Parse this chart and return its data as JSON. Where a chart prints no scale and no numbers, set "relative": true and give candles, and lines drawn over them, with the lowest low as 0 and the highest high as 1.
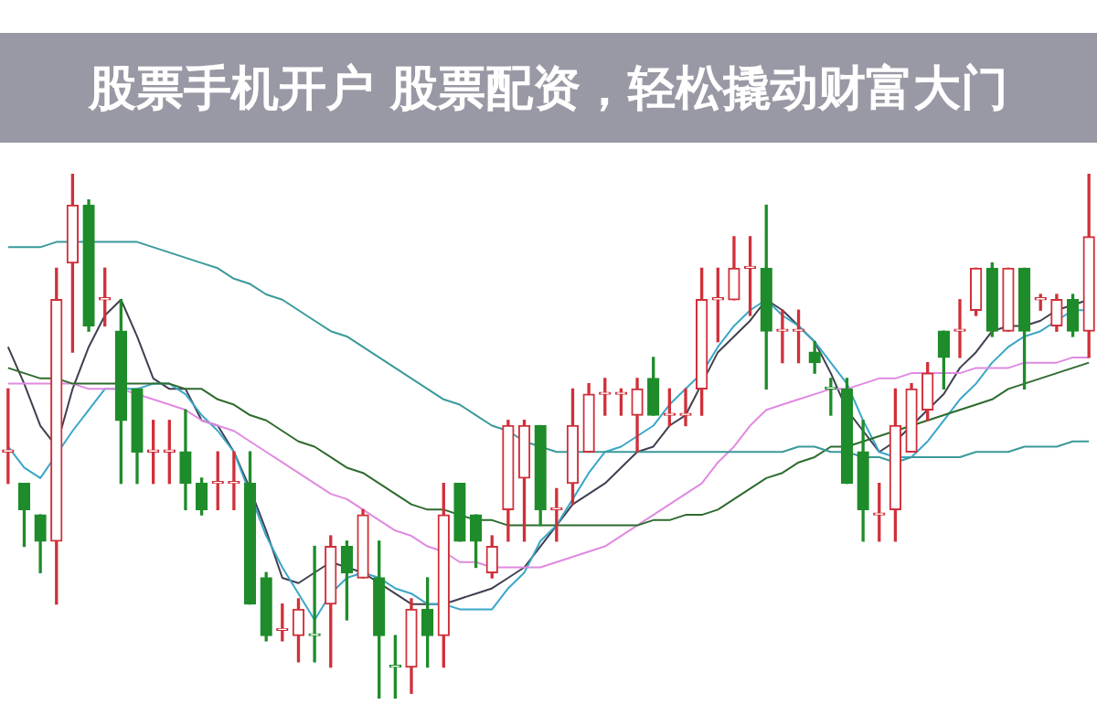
{
  "chart_data": {
    "type": "candlestick",
    "title": "股票手机开户 股票配资，轻松撬动财富大门",
    "relative": true,
    "tick_labels": false,
    "marker": "none",
    "line_style": "solid",
    "categories": [
      null,
      null,
      null,
      null,
      null,
      null,
      null,
      null,
      null,
      null,
      null,
      null,
      null,
      null,
      null,
      null,
      null,
      null,
      null,
      null,
      null,
      null,
      null,
      null,
      null,
      null,
      null,
      null,
      null,
      null,
      null,
      null,
      null,
      null,
      null,
      null,
      null,
      null,
      null,
      null,
      null,
      null,
      null,
      null,
      null,
      null,
      null,
      null,
      null,
      null,
      null,
      null,
      null,
      null,
      null,
      null,
      null,
      null,
      null,
      null,
      null,
      null,
      null,
      null,
      null,
      null,
      null,
      null
    ],
    "ohlc": [
      [
        0.47,
        0.59,
        0.41,
        0.47
      ],
      [
        0.41,
        0.41,
        0.29,
        0.36
      ],
      [
        0.35,
        0.35,
        0.24,
        0.3
      ],
      [
        0.3,
        0.82,
        0.18,
        0.76
      ],
      [
        0.83,
        1.0,
        0.66,
        0.94
      ],
      [
        0.94,
        0.95,
        0.7,
        0.71
      ],
      [
        0.76,
        0.82,
        0.71,
        0.76
      ],
      [
        0.7,
        0.76,
        0.41,
        0.53
      ],
      [
        0.59,
        0.59,
        0.41,
        0.47
      ],
      [
        0.47,
        0.53,
        0.41,
        0.47
      ],
      [
        0.47,
        0.53,
        0.41,
        0.47
      ],
      [
        0.47,
        0.55,
        0.36,
        0.41
      ],
      [
        0.41,
        0.42,
        0.35,
        0.36
      ],
      [
        0.41,
        0.47,
        0.36,
        0.41
      ],
      [
        0.41,
        0.47,
        0.36,
        0.41
      ],
      [
        0.41,
        0.47,
        0.18,
        0.18
      ],
      [
        0.23,
        0.24,
        0.11,
        0.12
      ],
      [
        0.13,
        0.18,
        0.11,
        0.13
      ],
      [
        0.12,
        0.19,
        0.07,
        0.17
      ],
      [
        0.12,
        0.29,
        0.07,
        0.12
      ],
      [
        0.18,
        0.31,
        0.06,
        0.29
      ],
      [
        0.29,
        0.3,
        0.15,
        0.24
      ],
      [
        0.23,
        0.36,
        0.23,
        0.35
      ],
      [
        0.23,
        0.3,
        0.0,
        0.12
      ],
      [
        0.06,
        0.12,
        0.0,
        0.06
      ],
      [
        0.06,
        0.19,
        0.01,
        0.17
      ],
      [
        0.17,
        0.23,
        0.06,
        0.12
      ],
      [
        0.12,
        0.41,
        0.06,
        0.35
      ],
      [
        0.41,
        0.41,
        0.3,
        0.3
      ],
      [
        0.35,
        0.35,
        0.25,
        0.3
      ],
      [
        0.24,
        0.31,
        0.23,
        0.29
      ],
      [
        0.36,
        0.53,
        0.3,
        0.52
      ],
      [
        0.42,
        0.53,
        0.3,
        0.52
      ],
      [
        0.52,
        0.52,
        0.33,
        0.36
      ],
      [
        0.36,
        0.4,
        0.3,
        0.36
      ],
      [
        0.41,
        0.59,
        0.37,
        0.52
      ],
      [
        0.47,
        0.6,
        0.47,
        0.58
      ],
      [
        0.58,
        0.61,
        0.54,
        0.58
      ],
      [
        0.58,
        0.59,
        0.54,
        0.58
      ],
      [
        0.54,
        0.61,
        0.47,
        0.59
      ],
      [
        0.61,
        0.65,
        0.54,
        0.54
      ],
      [
        0.54,
        0.59,
        0.52,
        0.54
      ],
      [
        0.54,
        0.59,
        0.52,
        0.54
      ],
      [
        0.59,
        0.82,
        0.54,
        0.76
      ],
      [
        0.76,
        0.82,
        0.68,
        0.76
      ],
      [
        0.76,
        0.88,
        0.76,
        0.82
      ],
      [
        0.82,
        0.88,
        0.73,
        0.82
      ],
      [
        0.82,
        0.94,
        0.59,
        0.7
      ],
      [
        0.7,
        0.74,
        0.64,
        0.7
      ],
      [
        0.7,
        0.74,
        0.64,
        0.7
      ],
      [
        0.66,
        0.68,
        0.62,
        0.64
      ],
      [
        0.59,
        0.61,
        0.54,
        0.59
      ],
      [
        0.59,
        0.61,
        0.41,
        0.41
      ],
      [
        0.47,
        0.53,
        0.3,
        0.36
      ],
      [
        0.35,
        0.41,
        0.3,
        0.35
      ],
      [
        0.36,
        0.59,
        0.3,
        0.52
      ],
      [
        0.47,
        0.6,
        0.47,
        0.59
      ],
      [
        0.55,
        0.64,
        0.53,
        0.62
      ],
      [
        0.7,
        0.7,
        0.59,
        0.65
      ],
      [
        0.7,
        0.76,
        0.65,
        0.7
      ],
      [
        0.74,
        0.82,
        0.73,
        0.82
      ],
      [
        0.82,
        0.83,
        0.69,
        0.7
      ],
      [
        0.7,
        0.82,
        0.7,
        0.82
      ],
      [
        0.82,
        0.82,
        0.59,
        0.7
      ],
      [
        0.76,
        0.77,
        0.74,
        0.76
      ],
      [
        0.71,
        0.77,
        0.7,
        0.76
      ],
      [
        0.76,
        0.77,
        0.69,
        0.7
      ],
      [
        0.7,
        1.0,
        0.65,
        0.88
      ]
    ],
    "colors": [
      "#d0303a",
      "#1e8c2a",
      "#1e8c2a",
      "#d0303a",
      "#d0303a",
      "#1e8c2a",
      "#d0303a",
      "#1e8c2a",
      "#1e8c2a",
      "#d0303a",
      "#d0303a",
      "#1e8c2a",
      "#1e8c2a",
      "#d0303a",
      "#d0303a",
      "#1e8c2a",
      "#1e8c2a",
      "#d0303a",
      "#d0303a",
      "#1e8c2a",
      "#d0303a",
      "#1e8c2a",
      "#d0303a",
      "#1e8c2a",
      "#1e8c2a",
      "#d0303a",
      "#1e8c2a",
      "#d0303a",
      "#1e8c2a",
      "#1e8c2a",
      "#d0303a",
      "#d0303a",
      "#d0303a",
      "#1e8c2a",
      "#d0303a",
      "#d0303a",
      "#d0303a",
      "#d0303a",
      "#d0303a",
      "#d0303a",
      "#1e8c2a",
      "#d0303a",
      "#d0303a",
      "#d0303a",
      "#d0303a",
      "#d0303a",
      "#d0303a",
      "#1e8c2a",
      "#d0303a",
      "#d0303a",
      "#1e8c2a",
      "#1e8c2a",
      "#1e8c2a",
      "#1e8c2a",
      "#d0303a",
      "#d0303a",
      "#d0303a",
      "#d0303a",
      "#1e8c2a",
      "#d0303a",
      "#d0303a",
      "#1e8c2a",
      "#d0303a",
      "#1e8c2a",
      "#d0303a",
      "#d0303a",
      "#1e8c2a",
      "#d0303a"
    ],
    "series": [
      {
        "type": "line",
        "color": "#3a9a9a",
        "values": [
          0.86,
          0.86,
          0.86,
          0.87,
          0.87,
          0.87,
          0.87,
          0.87,
          0.87,
          0.86,
          0.85,
          0.84,
          0.83,
          0.82,
          0.8,
          0.79,
          0.77,
          0.76,
          0.74,
          0.72,
          0.7,
          0.69,
          0.67,
          0.65,
          0.63,
          0.61,
          0.59,
          0.57,
          0.56,
          0.54,
          0.52,
          0.51,
          0.49,
          0.48,
          0.47,
          0.47,
          0.47,
          0.47,
          0.47,
          0.47,
          0.47,
          0.47,
          0.47,
          0.47,
          0.47,
          0.47,
          0.47,
          0.47,
          0.47,
          0.48,
          0.48,
          0.47,
          0.47,
          0.46,
          0.46,
          0.45,
          0.46,
          0.46,
          0.46,
          0.46,
          0.47,
          0.47,
          0.47,
          0.48,
          0.48,
          0.48,
          0.49,
          0.49
        ]
      },
      {
        "type": "line",
        "color": "#2e6b2e",
        "values": [
          0.63,
          0.62,
          0.61,
          0.61,
          0.6,
          0.6,
          0.6,
          0.6,
          0.6,
          0.6,
          0.6,
          0.59,
          0.59,
          0.57,
          0.56,
          0.54,
          0.53,
          0.51,
          0.49,
          0.48,
          0.46,
          0.44,
          0.43,
          0.41,
          0.39,
          0.37,
          0.36,
          0.36,
          0.35,
          0.34,
          0.34,
          0.33,
          0.33,
          0.33,
          0.33,
          0.33,
          0.33,
          0.33,
          0.33,
          0.33,
          0.34,
          0.34,
          0.35,
          0.35,
          0.36,
          0.38,
          0.4,
          0.42,
          0.43,
          0.45,
          0.46,
          0.48,
          0.48,
          0.49,
          0.5,
          0.51,
          0.52,
          0.53,
          0.54,
          0.55,
          0.56,
          0.57,
          0.59,
          0.6,
          0.61,
          0.62,
          0.63,
          0.64
        ]
      },
      {
        "type": "line",
        "color": "#e08ae0",
        "values": [
          0.6,
          0.6,
          0.6,
          0.6,
          0.6,
          0.59,
          0.59,
          0.59,
          0.58,
          0.57,
          0.56,
          0.55,
          0.53,
          0.52,
          0.51,
          0.49,
          0.47,
          0.45,
          0.43,
          0.41,
          0.39,
          0.38,
          0.36,
          0.34,
          0.32,
          0.31,
          0.29,
          0.28,
          0.26,
          0.26,
          0.25,
          0.25,
          0.25,
          0.25,
          0.26,
          0.27,
          0.28,
          0.29,
          0.31,
          0.33,
          0.35,
          0.37,
          0.39,
          0.41,
          0.45,
          0.48,
          0.52,
          0.55,
          0.56,
          0.57,
          0.58,
          0.59,
          0.59,
          0.6,
          0.61,
          0.61,
          0.62,
          0.62,
          0.62,
          0.62,
          0.63,
          0.63,
          0.63,
          0.64,
          0.64,
          0.64,
          0.65,
          0.65
        ]
      },
      {
        "type": "line",
        "color": "#3aa6c8",
        "values": [
          0.48,
          0.44,
          0.42,
          null,
          0.51,
          0.55,
          0.59,
          0.59,
          0.59,
          0.6,
          0.6,
          0.58,
          0.54,
          0.51,
          0.47,
          null,
          0.31,
          0.25,
          0.2,
          0.15,
          0.2,
          0.23,
          0.24,
          0.23,
          0.21,
          0.2,
          0.18,
          0.18,
          0.17,
          0.17,
          0.17,
          0.21,
          0.24,
          0.3,
          0.33,
          0.38,
          0.43,
          0.47,
          0.48,
          0.5,
          0.52,
          0.56,
          0.59,
          0.62,
          0.67,
          0.71,
          0.74,
          0.76,
          0.73,
          0.71,
          0.68,
          0.64,
          0.6,
          0.53,
          0.47,
          0.46,
          0.46,
          0.49,
          0.53,
          0.57,
          0.6,
          0.64,
          0.67,
          0.69,
          0.7,
          0.72,
          0.74,
          0.74
        ]
      },
      {
        "type": "line",
        "color": "#404050",
        "values": [
          0.67,
          0.6,
          0.52,
          0.48,
          0.59,
          0.67,
          0.73,
          0.76,
          0.69,
          0.61,
          0.59,
          0.59,
          0.53,
          0.52,
          0.47,
          0.4,
          0.32,
          0.23,
          0.22,
          0.24,
          0.26,
          0.25,
          0.24,
          0.22,
          0.2,
          0.18,
          0.18,
          0.18,
          0.19,
          0.2,
          0.21,
          0.23,
          0.25,
          0.29,
          0.33,
          0.37,
          0.39,
          0.41,
          0.44,
          0.47,
          0.48,
          0.52,
          0.54,
          0.6,
          0.66,
          0.69,
          0.72,
          0.76,
          0.74,
          0.71,
          0.68,
          0.62,
          0.55,
          0.51,
          0.47,
          0.49,
          0.52,
          0.55,
          0.58,
          0.63,
          0.66,
          0.7,
          0.71,
          0.71,
          0.72,
          0.74,
          0.75,
          0.76
        ]
      }
    ]
  }
}
